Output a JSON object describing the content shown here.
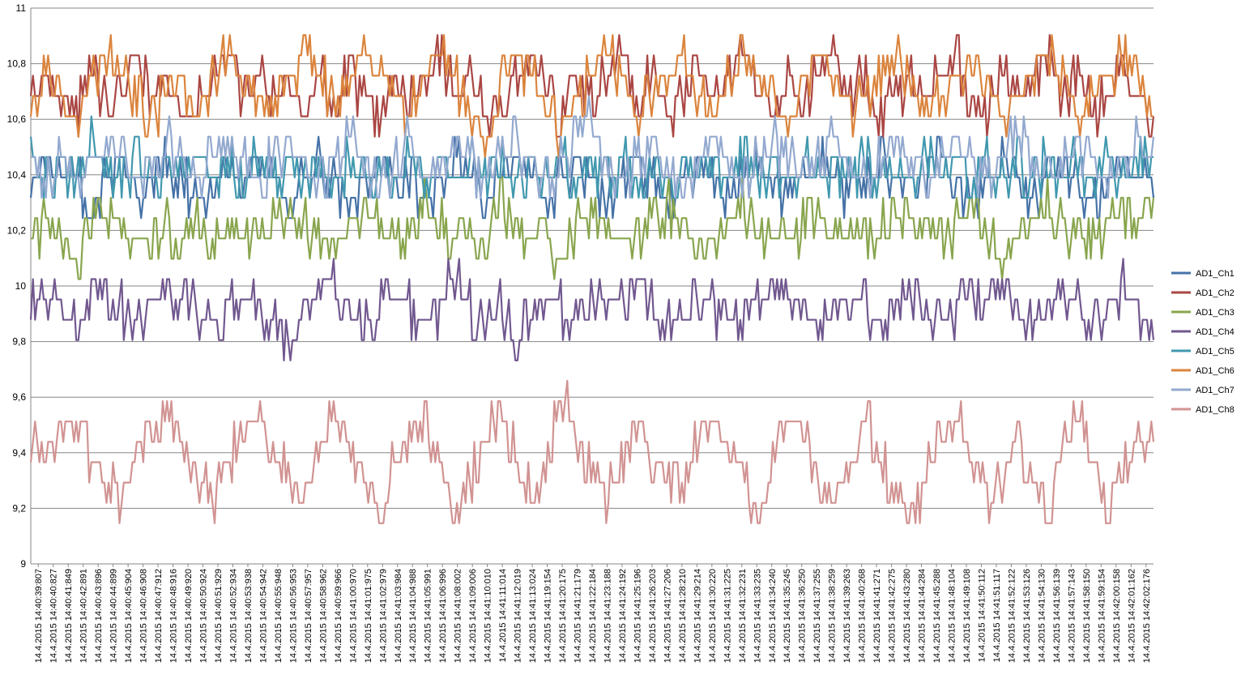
{
  "chart_data": {
    "type": "line",
    "title": "",
    "xlabel": "",
    "ylabel": "",
    "ylim": [
      9,
      11
    ],
    "y_ticks": [
      "9",
      "9,2",
      "9,4",
      "9,6",
      "9,8",
      "10",
      "10,2",
      "10,4",
      "10,6",
      "10,8",
      "11"
    ],
    "grid": "horizontal",
    "legend_position": "right",
    "x_categories": [
      "14.4.2015 14:40:39:807",
      "14.4.2015 14:40:40:827",
      "14.4.2015 14:40:41:849",
      "14.4.2015 14:40:42:891",
      "14.4.2015 14:40:43:896",
      "14.4.2015 14:40:44:899",
      "14.4.2015 14:40:45:904",
      "14.4.2015 14:40:46:908",
      "14.4.2015 14:40:47:912",
      "14.4.2015 14:40:48:916",
      "14.4.2015 14:40:49:920",
      "14.4.2015 14:40:50:924",
      "14.4.2015 14:40:51:929",
      "14.4.2015 14:40:52:934",
      "14.4.2015 14:40:53:938",
      "14.4.2015 14:40:54:942",
      "14.4.2015 14:40:55:948",
      "14.4.2015 14:40:56:953",
      "14.4.2015 14:40:57:957",
      "14.4.2015 14:40:58:962",
      "14.4.2015 14:40:59:966",
      "14.4.2015 14:41:00:970",
      "14.4.2015 14:41:01:975",
      "14.4.2015 14:41:02:979",
      "14.4.2015 14:41:03:984",
      "14.4.2015 14:41:04:988",
      "14.4.2015 14:41:05:991",
      "14.4.2015 14:41:06:996",
      "14.4.2015 14:41:08:002",
      "14.4.2015 14:41:09:006",
      "14.4.2015 14:41:10:010",
      "14.4.2015 14:41:11:014",
      "14.4.2015 14:41:12:019",
      "14.4.2015 14:41:13:024",
      "14.4.2015 14:41:19:154",
      "14.4.2015 14:41:20:175",
      "14.4.2015 14:41:21:179",
      "14.4.2015 14:41:22:184",
      "14.4.2015 14:41:23:188",
      "14.4.2015 14:41:24:192",
      "14.4.2015 14:41:25:196",
      "14.4.2015 14:41:26:203",
      "14.4.2015 14:41:27:206",
      "14.4.2015 14:41:28:210",
      "14.4.2015 14:41:29:214",
      "14.4.2015 14:41:30:220",
      "14.4.2015 14:41:31:225",
      "14.4.2015 14:41:32:231",
      "14.4.2015 14:41:33:235",
      "14.4.2015 14:41:34:240",
      "14.4.2015 14:41:35:245",
      "14.4.2015 14:41:36:250",
      "14.4.2015 14:41:37:255",
      "14.4.2015 14:41:38:259",
      "14.4.2015 14:41:39:263",
      "14.4.2015 14:41:40:268",
      "14.4.2015 14:41:41:271",
      "14.4.2015 14:41:42:275",
      "14.4.2015 14:41:43:280",
      "14.4.2015 14:41:44:284",
      "14.4.2015 14:41:45:288",
      "14.4.2015 14:41:48:104",
      "14.4.2015 14:41:49:108",
      "14.4.2015 14:41:50:112",
      "14.4.2015 14:41:51:117",
      "14.4.2015 14:41:52:122",
      "14.4.2015 14:41:53:126",
      "14.4.2015 14:41:54:130",
      "14.4.2015 14:41:56:139",
      "14.4.2015 14:41:57:143",
      "14.4.2015 14:41:58:150",
      "14.4.2015 14:41:59:154",
      "14.4.2015 14:42:00:158",
      "14.4.2015 14:42:01:162",
      "14.4.2015 14:42:02:176"
    ],
    "series": [
      {
        "name": "AD1_Ch1",
        "color": "#4572A7",
        "base": 10.38,
        "values": [
          10.38,
          10.45,
          10.38,
          10.38,
          10.31,
          10.38,
          10.45,
          10.31,
          10.38,
          10.45,
          10.38,
          10.31,
          10.38,
          10.45,
          10.38,
          10.45,
          10.38,
          10.31,
          10.38,
          10.45,
          10.38,
          10.31,
          10.38,
          10.45,
          10.38,
          10.38,
          10.31,
          10.38,
          10.45,
          10.38,
          10.31,
          10.38,
          10.45,
          10.38,
          10.31,
          10.38,
          10.45,
          10.38,
          10.31,
          10.38,
          10.45,
          10.38,
          10.31,
          10.38,
          10.45,
          10.38,
          10.31,
          10.38,
          10.45,
          10.38,
          10.31,
          10.38,
          10.45,
          10.38,
          10.31,
          10.38,
          10.45,
          10.38,
          10.31,
          10.38,
          10.45,
          10.38,
          10.31,
          10.38,
          10.45,
          10.38,
          10.31,
          10.38,
          10.45,
          10.38,
          10.31,
          10.38,
          10.45,
          10.38,
          10.38
        ]
      },
      {
        "name": "AD1_Ch2",
        "color": "#AA4643",
        "base": 10.72,
        "values": [
          10.68,
          10.75,
          10.68,
          10.62,
          10.75,
          10.68,
          10.75,
          10.83,
          10.68,
          10.75,
          10.62,
          10.68,
          10.75,
          10.83,
          10.68,
          10.75,
          10.68,
          10.75,
          10.62,
          10.75,
          10.68,
          10.75,
          10.68,
          10.62,
          10.75,
          10.68,
          10.75,
          10.83,
          10.68,
          10.75,
          10.62,
          10.68,
          10.75,
          10.83,
          10.68,
          10.62,
          10.75,
          10.68,
          10.75,
          10.83,
          10.68,
          10.75,
          10.62,
          10.68,
          10.75,
          10.68,
          10.75,
          10.83,
          10.68,
          10.62,
          10.75,
          10.68,
          10.75,
          10.83,
          10.68,
          10.75,
          10.62,
          10.68,
          10.75,
          10.68,
          10.75,
          10.83,
          10.68,
          10.62,
          10.75,
          10.68,
          10.75,
          10.83,
          10.68,
          10.75,
          10.62,
          10.68,
          10.75,
          10.68,
          10.62
        ]
      },
      {
        "name": "AD1_Ch3",
        "color": "#89A54E",
        "base": 10.2,
        "values": [
          10.17,
          10.22,
          10.14,
          10.1,
          10.22,
          10.29,
          10.22,
          10.17,
          10.14,
          10.22,
          10.17,
          10.22,
          10.14,
          10.22,
          10.17,
          10.14,
          10.22,
          10.29,
          10.22,
          10.17,
          10.14,
          10.22,
          10.29,
          10.22,
          10.17,
          10.22,
          10.29,
          10.22,
          10.14,
          10.22,
          10.17,
          10.29,
          10.22,
          10.17,
          10.14,
          10.07,
          10.22,
          10.29,
          10.22,
          10.14,
          10.17,
          10.22,
          10.29,
          10.22,
          10.17,
          10.14,
          10.22,
          10.29,
          10.22,
          10.17,
          10.14,
          10.22,
          10.29,
          10.22,
          10.17,
          10.14,
          10.22,
          10.29,
          10.22,
          10.17,
          10.14,
          10.22,
          10.29,
          10.22,
          10.1,
          10.17,
          10.22,
          10.29,
          10.22,
          10.17,
          10.14,
          10.22,
          10.29,
          10.22,
          10.22
        ]
      },
      {
        "name": "AD1_Ch4",
        "color": "#71588F",
        "base": 9.93,
        "values": [
          9.92,
          9.99,
          9.92,
          9.85,
          9.92,
          9.99,
          9.92,
          9.85,
          9.92,
          9.99,
          9.92,
          9.92,
          9.85,
          9.92,
          9.99,
          9.92,
          9.85,
          9.78,
          9.92,
          9.99,
          9.99,
          9.92,
          9.85,
          9.92,
          9.99,
          9.92,
          9.85,
          9.92,
          10.06,
          9.92,
          9.85,
          9.92,
          9.78,
          9.92,
          9.99,
          9.92,
          9.85,
          9.92,
          9.99,
          9.92,
          10.06,
          9.92,
          9.85,
          9.92,
          9.99,
          9.92,
          9.85,
          9.92,
          9.99,
          9.92,
          9.99,
          9.92,
          9.85,
          9.92,
          9.99,
          9.92,
          9.85,
          9.92,
          9.99,
          9.92,
          9.85,
          9.92,
          9.99,
          9.92,
          10.06,
          9.92,
          9.85,
          9.92,
          9.99,
          9.92,
          9.85,
          9.92,
          9.99,
          9.92,
          9.85
        ]
      },
      {
        "name": "AD1_Ch5",
        "color": "#4198AF",
        "base": 10.41,
        "values": [
          10.45,
          10.38,
          10.45,
          10.38,
          10.52,
          10.45,
          10.38,
          10.45,
          10.38,
          10.45,
          10.38,
          10.45,
          10.38,
          10.45,
          10.38,
          10.45,
          10.38,
          10.45,
          10.38,
          10.45,
          10.38,
          10.45,
          10.38,
          10.45,
          10.38,
          10.45,
          10.38,
          10.45,
          10.38,
          10.45,
          10.38,
          10.45,
          10.38,
          10.45,
          10.38,
          10.45,
          10.38,
          10.45,
          10.38,
          10.45,
          10.38,
          10.45,
          10.38,
          10.45,
          10.38,
          10.45,
          10.38,
          10.45,
          10.38,
          10.45,
          10.38,
          10.45,
          10.38,
          10.45,
          10.38,
          10.45,
          10.38,
          10.45,
          10.38,
          10.45,
          10.38,
          10.45,
          10.38,
          10.45,
          10.38,
          10.45,
          10.38,
          10.45,
          10.38,
          10.45,
          10.38,
          10.45,
          10.38,
          10.45,
          10.45
        ]
      },
      {
        "name": "AD1_Ch6",
        "color": "#DB843D",
        "base": 10.7,
        "values": [
          10.62,
          10.75,
          10.68,
          10.62,
          10.75,
          10.83,
          10.75,
          10.68,
          10.62,
          10.68,
          10.75,
          10.62,
          10.75,
          10.83,
          10.75,
          10.68,
          10.62,
          10.75,
          10.83,
          10.75,
          10.68,
          10.75,
          10.83,
          10.75,
          10.68,
          10.62,
          10.75,
          10.83,
          10.75,
          10.62,
          10.55,
          10.75,
          10.83,
          10.75,
          10.62,
          10.55,
          10.68,
          10.75,
          10.83,
          10.75,
          10.62,
          10.68,
          10.75,
          10.83,
          10.68,
          10.62,
          10.75,
          10.83,
          10.75,
          10.68,
          10.55,
          10.75,
          10.83,
          10.75,
          10.62,
          10.68,
          10.75,
          10.83,
          10.75,
          10.62,
          10.68,
          10.75,
          10.83,
          10.75,
          10.62,
          10.68,
          10.75,
          10.83,
          10.75,
          10.62,
          10.68,
          10.75,
          10.83,
          10.75,
          10.55
        ]
      },
      {
        "name": "AD1_Ch7",
        "color": "#93A9CF",
        "base": 10.44,
        "values": [
          10.45,
          10.38,
          10.45,
          10.38,
          10.45,
          10.52,
          10.45,
          10.38,
          10.45,
          10.52,
          10.45,
          10.38,
          10.45,
          10.52,
          10.45,
          10.38,
          10.45,
          10.52,
          10.45,
          10.38,
          10.45,
          10.52,
          10.45,
          10.38,
          10.45,
          10.52,
          10.38,
          10.45,
          10.52,
          10.45,
          10.38,
          10.45,
          10.52,
          10.45,
          10.38,
          10.45,
          10.52,
          10.59,
          10.45,
          10.38,
          10.45,
          10.52,
          10.45,
          10.38,
          10.45,
          10.52,
          10.45,
          10.38,
          10.45,
          10.52,
          10.45,
          10.38,
          10.45,
          10.52,
          10.45,
          10.38,
          10.45,
          10.52,
          10.45,
          10.38,
          10.45,
          10.52,
          10.45,
          10.38,
          10.45,
          10.59,
          10.45,
          10.38,
          10.45,
          10.52,
          10.45,
          10.38,
          10.45,
          10.52,
          10.45
        ]
      },
      {
        "name": "AD1_Ch8",
        "color": "#D19392",
        "base": 9.38,
        "values": [
          9.46,
          9.38,
          9.46,
          9.53,
          9.38,
          9.31,
          9.23,
          9.38,
          9.46,
          9.53,
          9.46,
          9.31,
          9.23,
          9.38,
          9.46,
          9.53,
          9.38,
          9.31,
          9.23,
          9.38,
          9.53,
          9.46,
          9.31,
          9.16,
          9.38,
          9.46,
          9.53,
          9.38,
          9.16,
          9.31,
          9.46,
          9.53,
          9.38,
          9.23,
          9.38,
          9.6,
          9.46,
          9.31,
          9.23,
          9.38,
          9.53,
          9.38,
          9.31,
          9.23,
          9.46,
          9.53,
          9.38,
          9.31,
          9.16,
          9.38,
          9.53,
          9.46,
          9.31,
          9.23,
          9.38,
          9.53,
          9.38,
          9.23,
          9.16,
          9.31,
          9.46,
          9.53,
          9.38,
          9.23,
          9.31,
          9.46,
          9.31,
          9.16,
          9.38,
          9.53,
          9.38,
          9.16,
          9.31,
          9.46,
          9.46
        ]
      }
    ]
  }
}
